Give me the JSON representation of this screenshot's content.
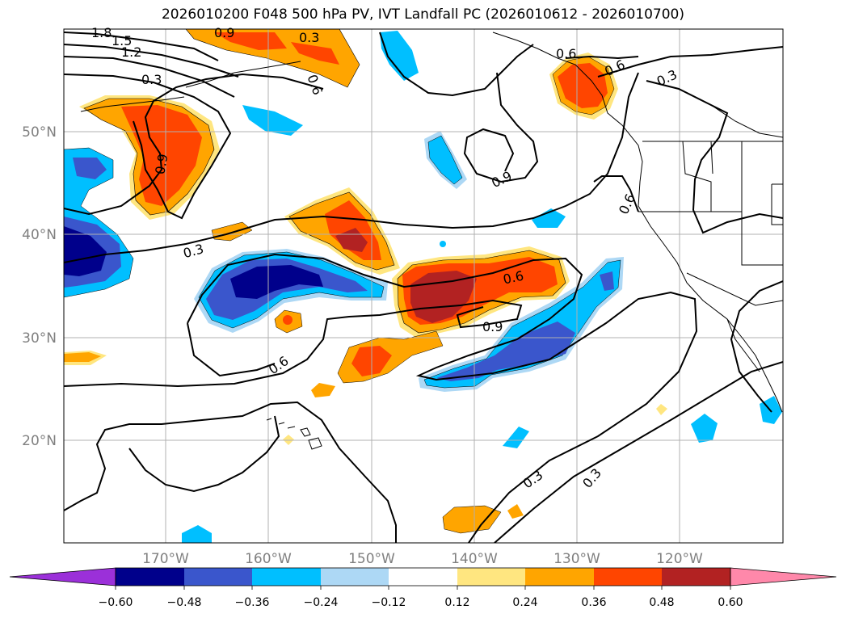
{
  "title": "2026010200 F048 500 hPa PV, IVT Landfall PC (2026010612 - 2026010700)",
  "longitude_labels": [
    "170°W",
    "160°W",
    "150°W",
    "140°W",
    "130°W",
    "120°W"
  ],
  "latitude_labels": [
    "50°N",
    "40°N",
    "30°N",
    "20°N"
  ],
  "contour_labels": [
    "1.8",
    "1.5",
    "1.2",
    "0.3",
    "0.9",
    "0.3",
    "0.6",
    "0.6",
    "0.9",
    "0.6",
    "0.3",
    "0.9",
    "0.6",
    "0.6",
    "0.9",
    "0.3",
    "0.6",
    "0.3",
    "0.3"
  ],
  "colorbar": {
    "tick_labels": [
      "−0.60",
      "−0.48",
      "−0.36",
      "−0.24",
      "−0.12",
      "0.12",
      "0.24",
      "0.36",
      "0.48",
      "0.60"
    ],
    "colors": [
      "#9b30d9",
      "#00008b",
      "#3a56cc",
      "#00bfff",
      "#add8f5",
      "#ffffff",
      "#ffe680",
      "#ffa500",
      "#ff4500",
      "#b22222",
      "#ff88aa"
    ]
  },
  "fill_colors": {
    "neg_060": "#00008b",
    "neg_048": "#3a56cc",
    "neg_036": "#00bfff",
    "neg_024": "#add8f5",
    "pos_024": "#ffe680",
    "pos_036": "#ffa500",
    "pos_048": "#ff4500",
    "pos_060": "#b22222"
  }
}
